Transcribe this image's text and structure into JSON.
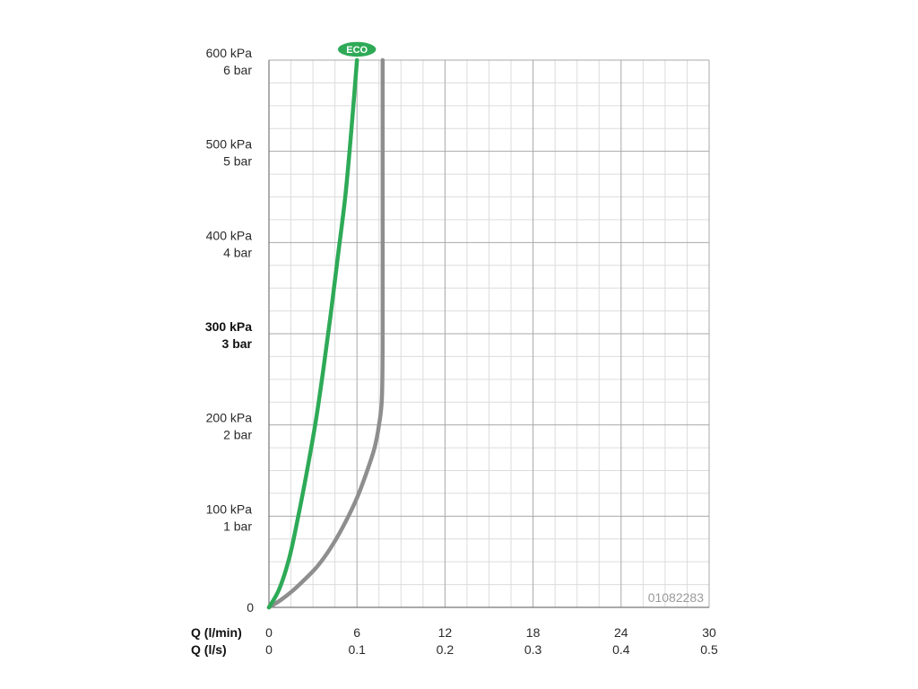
{
  "chart_data": {
    "type": "line",
    "title": "",
    "ylabel": "",
    "y_unit_primary": "kPa",
    "y_unit_secondary": "bar",
    "ylim": [
      0,
      600
    ],
    "y_ticks": [
      {
        "value": 0,
        "label": "0",
        "label2": "",
        "bold": false
      },
      {
        "value": 100,
        "label": "100 kPa",
        "label2": "1 bar",
        "bold": false
      },
      {
        "value": 200,
        "label": "200 kPa",
        "label2": "2 bar",
        "bold": false
      },
      {
        "value": 300,
        "label": "300 kPa",
        "label2": "3 bar",
        "bold": true
      },
      {
        "value": 400,
        "label": "400 kPa",
        "label2": "4 bar",
        "bold": false
      },
      {
        "value": 500,
        "label": "500 kPa",
        "label2": "5 bar",
        "bold": false
      },
      {
        "value": 600,
        "label": "600 kPa",
        "label2": "6 bar",
        "bold": false
      }
    ],
    "xlim": [
      0,
      30
    ],
    "x_axis_label_1": "Q (l/min)",
    "x_axis_label_2": "Q (l/s)",
    "x_ticks": [
      {
        "value": 0,
        "label": "0",
        "label2": "0"
      },
      {
        "value": 6,
        "label": "6",
        "label2": "0.1"
      },
      {
        "value": 12,
        "label": "12",
        "label2": "0.2"
      },
      {
        "value": 18,
        "label": "18",
        "label2": "0.3"
      },
      {
        "value": 24,
        "label": "24",
        "label2": "0.4"
      },
      {
        "value": 30,
        "label": "30",
        "label2": "0.5"
      }
    ],
    "grid": true,
    "grid_minor_x": 1.5,
    "grid_minor_y": 25,
    "series": [
      {
        "name": "",
        "color": "#8e8e8e",
        "x": [
          0,
          0.8,
          1.6,
          2.4,
          3.3,
          4.2,
          5.1,
          6.0,
          6.7,
          7.2,
          7.5,
          7.7,
          7.75,
          7.75,
          7.75
        ],
        "y": [
          0,
          8,
          18,
          30,
          45,
          65,
          90,
          120,
          150,
          175,
          200,
          230,
          300,
          450,
          600
        ]
      },
      {
        "name": "ECO",
        "color": "#2eaa57",
        "x": [
          0,
          0.7,
          1.4,
          2.0,
          2.6,
          3.2,
          3.7,
          4.2,
          4.7,
          5.2,
          5.6,
          6.0
        ],
        "y": [
          0,
          20,
          55,
          100,
          150,
          205,
          260,
          320,
          385,
          450,
          520,
          600
        ]
      }
    ],
    "annotations": {
      "eco_badge": "ECO",
      "code": "01082283"
    }
  }
}
